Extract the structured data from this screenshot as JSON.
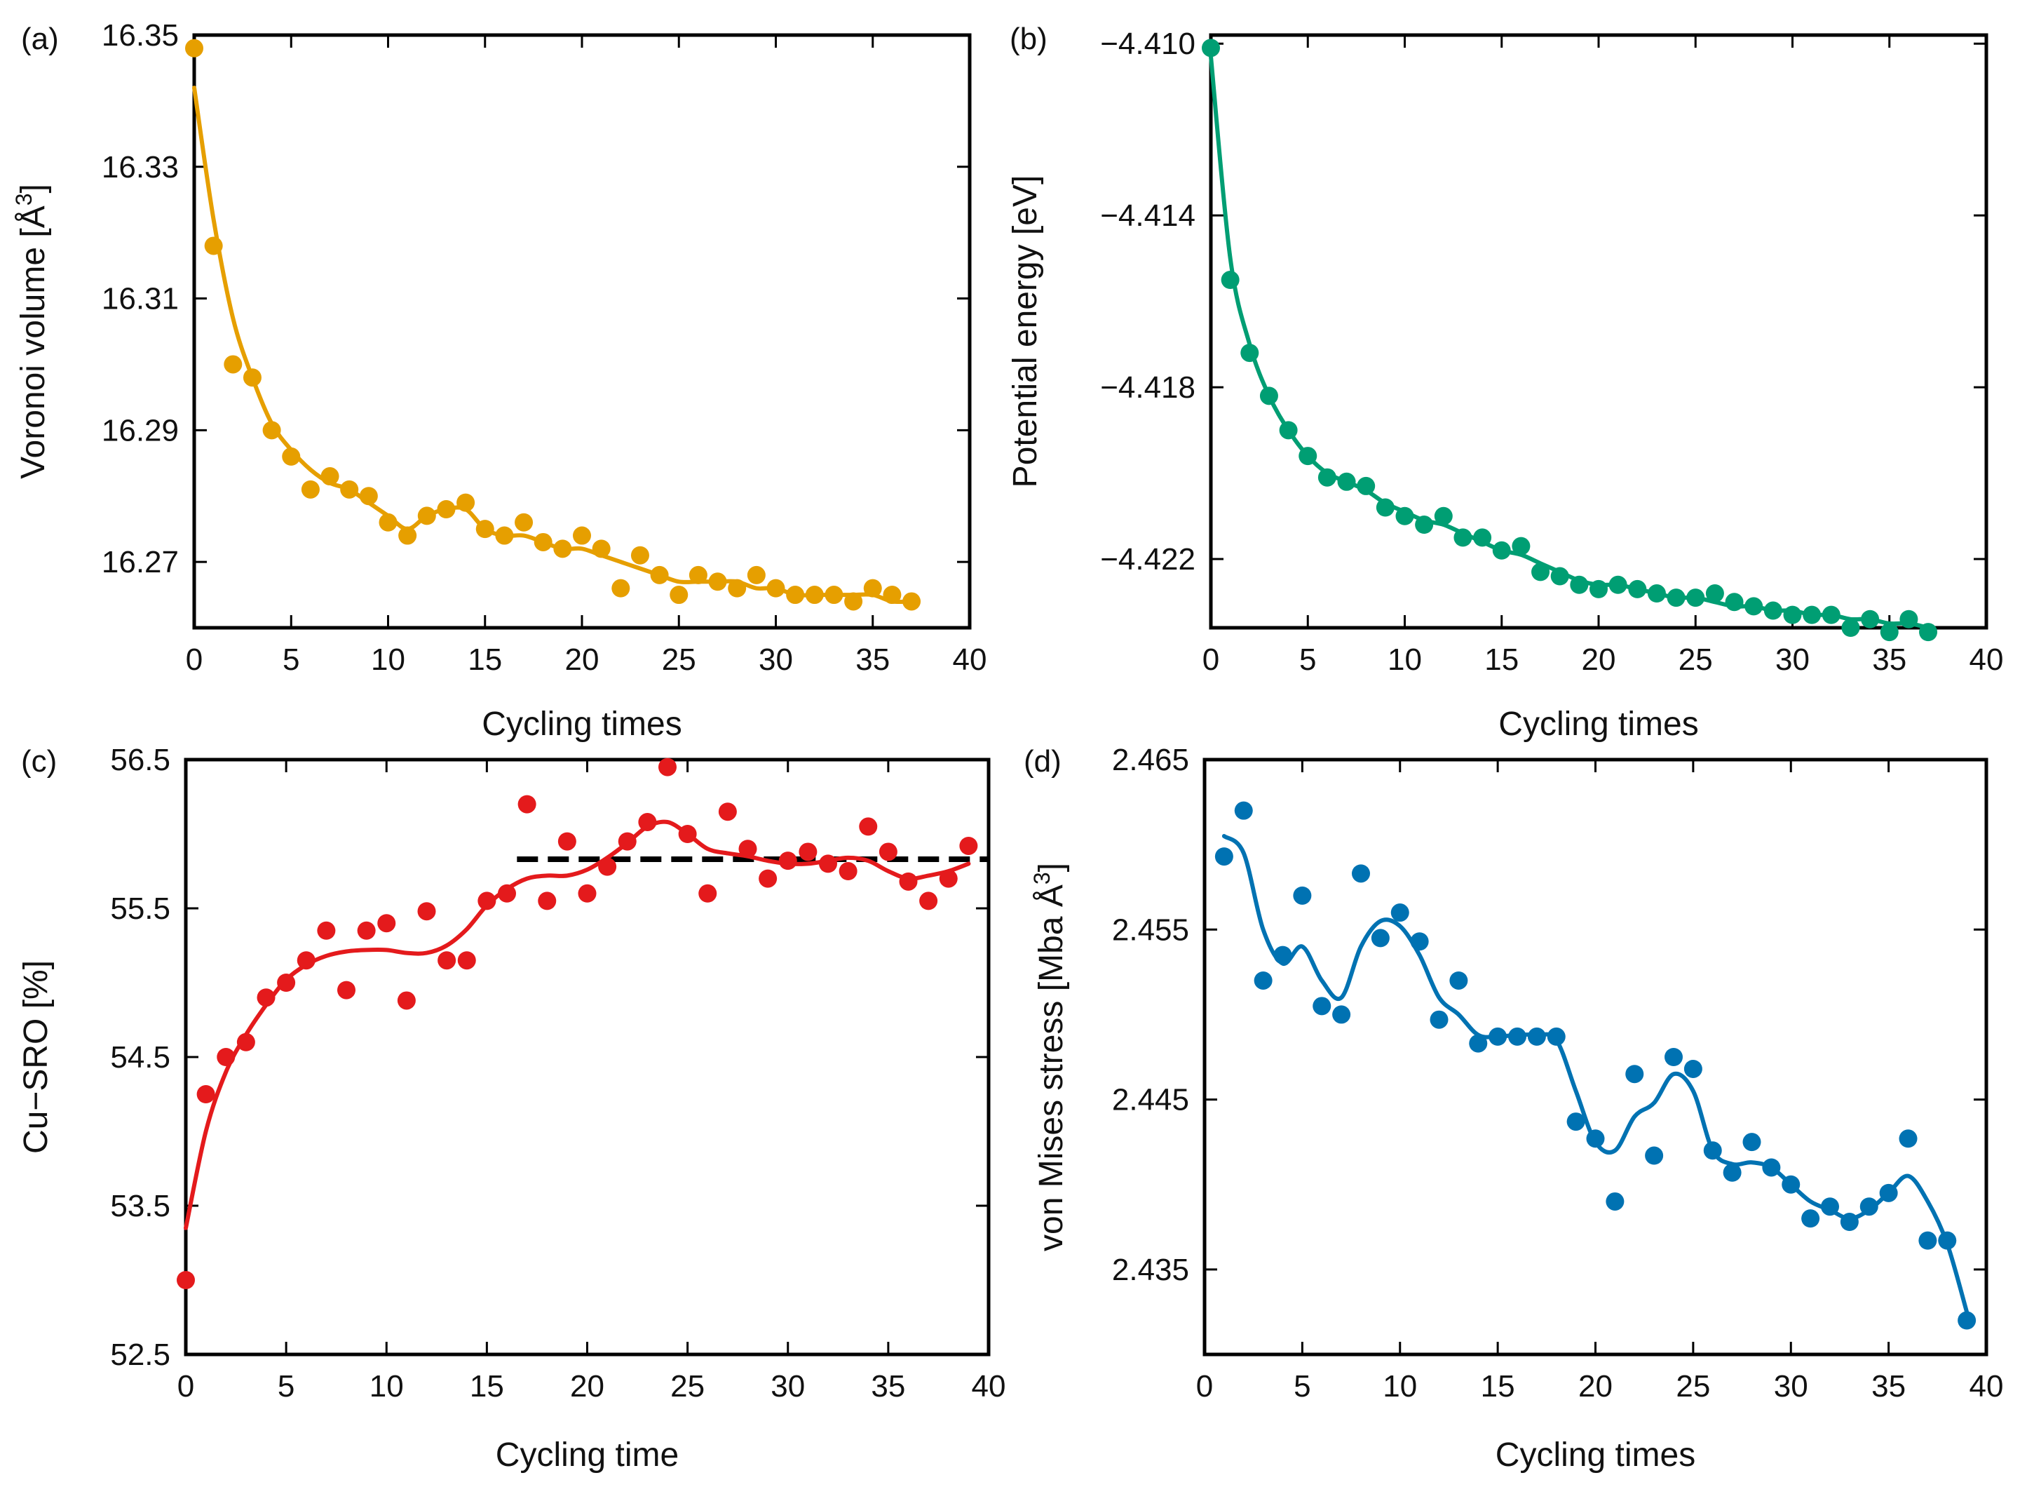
{
  "chart_data": [
    {
      "type": "scatter",
      "panel": "(a)",
      "xlabel": "Cycling times",
      "ylabel": "Voronoi volume [Å³]",
      "ylabel_main": "Voronoi volume [Å",
      "ylabel_sup": "3",
      "ylabel_end": "]",
      "xlim": [
        0,
        40
      ],
      "ylim": [
        16.26,
        16.35
      ],
      "xticks": [
        0,
        5,
        10,
        15,
        20,
        25,
        30,
        35,
        40
      ],
      "yticks": [
        16.27,
        16.29,
        16.31,
        16.33,
        16.35
      ],
      "ytick_labels": [
        "16.27",
        "16.29",
        "16.31",
        "16.33",
        "16.35"
      ],
      "color": "#E69F00",
      "x": [
        0,
        1,
        2,
        3,
        4,
        5,
        6,
        7,
        8,
        9,
        10,
        11,
        12,
        13,
        14,
        15,
        16,
        17,
        18,
        19,
        20,
        21,
        22,
        23,
        24,
        25,
        26,
        27,
        28,
        29,
        30,
        31,
        32,
        33,
        34,
        35,
        36,
        37
      ],
      "points": [
        16.348,
        16.318,
        16.3,
        16.298,
        16.29,
        16.286,
        16.281,
        16.283,
        16.281,
        16.28,
        16.276,
        16.274,
        16.277,
        16.278,
        16.279,
        16.275,
        16.274,
        16.276,
        16.273,
        16.272,
        16.274,
        16.272,
        16.266,
        16.271,
        16.268,
        16.265,
        16.268,
        16.267,
        16.266,
        16.268,
        16.266,
        16.265,
        16.265,
        16.265,
        16.264,
        16.266,
        16.265,
        16.264
      ],
      "curve": [
        16.342,
        16.322,
        16.307,
        16.298,
        16.291,
        16.287,
        16.284,
        16.282,
        16.281,
        16.279,
        16.277,
        16.275,
        16.277,
        16.278,
        16.278,
        16.275,
        16.274,
        16.274,
        16.273,
        16.272,
        16.272,
        16.271,
        16.27,
        16.269,
        16.268,
        16.267,
        16.267,
        16.267,
        16.267,
        16.266,
        16.266,
        16.265,
        16.265,
        16.265,
        16.265,
        16.265,
        16.264,
        16.264
      ]
    },
    {
      "type": "scatter",
      "panel": "(b)",
      "xlabel": "Cycling times",
      "ylabel": "Potential energy [eV]",
      "xlim": [
        0,
        40
      ],
      "ylim": [
        -4.4236,
        -4.4098
      ],
      "xticks": [
        0,
        5,
        10,
        15,
        20,
        25,
        30,
        35,
        40
      ],
      "yticks": [
        -4.422,
        -4.418,
        -4.414,
        -4.41
      ],
      "ytick_labels": [
        "−4.422",
        "−4.418",
        "−4.414",
        "−4.410"
      ],
      "color": "#009E73",
      "x": [
        0,
        1,
        2,
        3,
        4,
        5,
        6,
        7,
        8,
        9,
        10,
        11,
        12,
        13,
        14,
        15,
        16,
        17,
        18,
        19,
        20,
        21,
        22,
        23,
        24,
        25,
        26,
        27,
        28,
        29,
        30,
        31,
        32,
        33,
        34,
        35,
        36,
        37
      ],
      "points": [
        -4.4101,
        -4.4155,
        -4.4172,
        -4.4182,
        -4.419,
        -4.4196,
        -4.4201,
        -4.4202,
        -4.4203,
        -4.4208,
        -4.421,
        -4.4212,
        -4.421,
        -4.4215,
        -4.4215,
        -4.4218,
        -4.4217,
        -4.4223,
        -4.4224,
        -4.4226,
        -4.4227,
        -4.4226,
        -4.4227,
        -4.4228,
        -4.4229,
        -4.4229,
        -4.4228,
        -4.423,
        -4.4231,
        -4.4232,
        -4.4233,
        -4.4233,
        -4.4233,
        -4.4236,
        -4.4234,
        -4.4237,
        -4.4234,
        -4.4237
      ],
      "curve": [
        -4.4103,
        -4.415,
        -4.417,
        -4.4182,
        -4.419,
        -4.4196,
        -4.42,
        -4.4202,
        -4.4204,
        -4.4207,
        -4.4209,
        -4.4211,
        -4.4212,
        -4.4214,
        -4.4216,
        -4.4218,
        -4.4219,
        -4.4221,
        -4.4223,
        -4.4225,
        -4.4226,
        -4.4226,
        -4.4227,
        -4.4228,
        -4.4229,
        -4.4229,
        -4.423,
        -4.4231,
        -4.4231,
        -4.4232,
        -4.4232,
        -4.4233,
        -4.4233,
        -4.4234,
        -4.4234,
        -4.4235,
        -4.4235,
        -4.4236
      ]
    },
    {
      "type": "scatter",
      "panel": "(c)",
      "xlabel": "Cycling time",
      "ylabel": "Cu−SRO [%]",
      "xlim": [
        0,
        40
      ],
      "ylim": [
        52.5,
        56.5
      ],
      "xticks": [
        0,
        5,
        10,
        15,
        20,
        25,
        30,
        35,
        40
      ],
      "yticks": [
        52.5,
        53.5,
        54.5,
        55.5,
        56.5
      ],
      "ytick_labels": [
        "52.5",
        "53.5",
        "54.5",
        "55.5",
        "56.5"
      ],
      "color": "#E41A1C",
      "x": [
        0,
        1,
        2,
        3,
        4,
        5,
        6,
        7,
        8,
        9,
        10,
        11,
        12,
        13,
        14,
        15,
        16,
        17,
        18,
        19,
        20,
        21,
        22,
        23,
        24,
        25,
        26,
        27,
        28,
        29,
        30,
        31,
        32,
        33,
        34,
        35,
        36,
        37,
        38,
        39
      ],
      "points": [
        53.0,
        54.25,
        54.5,
        54.6,
        54.9,
        55.0,
        55.15,
        55.35,
        54.95,
        55.35,
        55.4,
        54.88,
        55.48,
        55.15,
        55.15,
        55.55,
        55.6,
        56.2,
        55.55,
        55.95,
        55.6,
        55.78,
        55.95,
        56.08,
        56.45,
        56.0,
        55.6,
        56.15,
        55.9,
        55.7,
        55.82,
        55.88,
        55.8,
        55.75,
        56.05,
        55.88,
        55.68,
        55.55,
        55.7,
        55.92
      ],
      "curve": [
        53.35,
        54.0,
        54.4,
        54.65,
        54.85,
        55.02,
        55.12,
        55.18,
        55.21,
        55.22,
        55.22,
        55.2,
        55.2,
        55.25,
        55.36,
        55.52,
        55.63,
        55.7,
        55.72,
        55.72,
        55.76,
        55.84,
        55.94,
        56.05,
        56.08,
        56.0,
        55.9,
        55.87,
        55.85,
        55.82,
        55.8,
        55.8,
        55.82,
        55.84,
        55.82,
        55.75,
        55.7,
        55.72,
        55.75,
        55.8
      ],
      "reference_line": {
        "value": 55.83,
        "x_start": 16.5,
        "x_end": 40,
        "style": "dashed"
      }
    },
    {
      "type": "scatter",
      "panel": "(d)",
      "xlabel": "Cycling times",
      "ylabel": "von Mises stress [Mba Å³]",
      "ylabel_main": "von Mises stress [Mba Å",
      "ylabel_sup": "3",
      "ylabel_end": "]",
      "xlim": [
        0,
        40
      ],
      "ylim": [
        2.43,
        2.465
      ],
      "xticks": [
        0,
        5,
        10,
        15,
        20,
        25,
        30,
        35,
        40
      ],
      "yticks": [
        2.435,
        2.445,
        2.455,
        2.465
      ],
      "ytick_labels": [
        "2.435",
        "2.445",
        "2.455",
        "2.465"
      ],
      "color": "#0072B2",
      "x": [
        1,
        2,
        3,
        4,
        5,
        6,
        7,
        8,
        9,
        10,
        11,
        12,
        13,
        14,
        15,
        16,
        17,
        18,
        19,
        20,
        21,
        22,
        23,
        24,
        25,
        26,
        27,
        28,
        29,
        30,
        31,
        32,
        33,
        34,
        35,
        36,
        37,
        38,
        39
      ],
      "points": [
        2.4593,
        2.462,
        2.452,
        2.4535,
        2.457,
        2.4505,
        2.45,
        2.4583,
        2.4545,
        2.456,
        2.4543,
        2.4497,
        2.452,
        2.4483,
        2.4487,
        2.4487,
        2.4487,
        2.4487,
        2.4437,
        2.4427,
        2.439,
        2.4465,
        2.4417,
        2.4475,
        2.4468,
        2.442,
        2.4407,
        2.4425,
        2.441,
        2.44,
        2.438,
        2.4387,
        2.4378,
        2.4387,
        2.4395,
        2.4427,
        2.4367,
        2.4367,
        2.432
      ],
      "curve": [
        2.4605,
        2.4595,
        2.455,
        2.453,
        2.454,
        2.452,
        2.451,
        2.454,
        2.4555,
        2.4552,
        2.4535,
        2.451,
        2.45,
        2.4488,
        2.4487,
        2.4488,
        2.4488,
        2.4485,
        2.4455,
        2.4425,
        2.442,
        2.444,
        2.4448,
        2.4465,
        2.4455,
        2.442,
        2.4412,
        2.4413,
        2.441,
        2.44,
        2.439,
        2.4385,
        2.438,
        2.4385,
        2.4395,
        2.4405,
        2.439,
        2.4365,
        2.4325
      ]
    }
  ]
}
